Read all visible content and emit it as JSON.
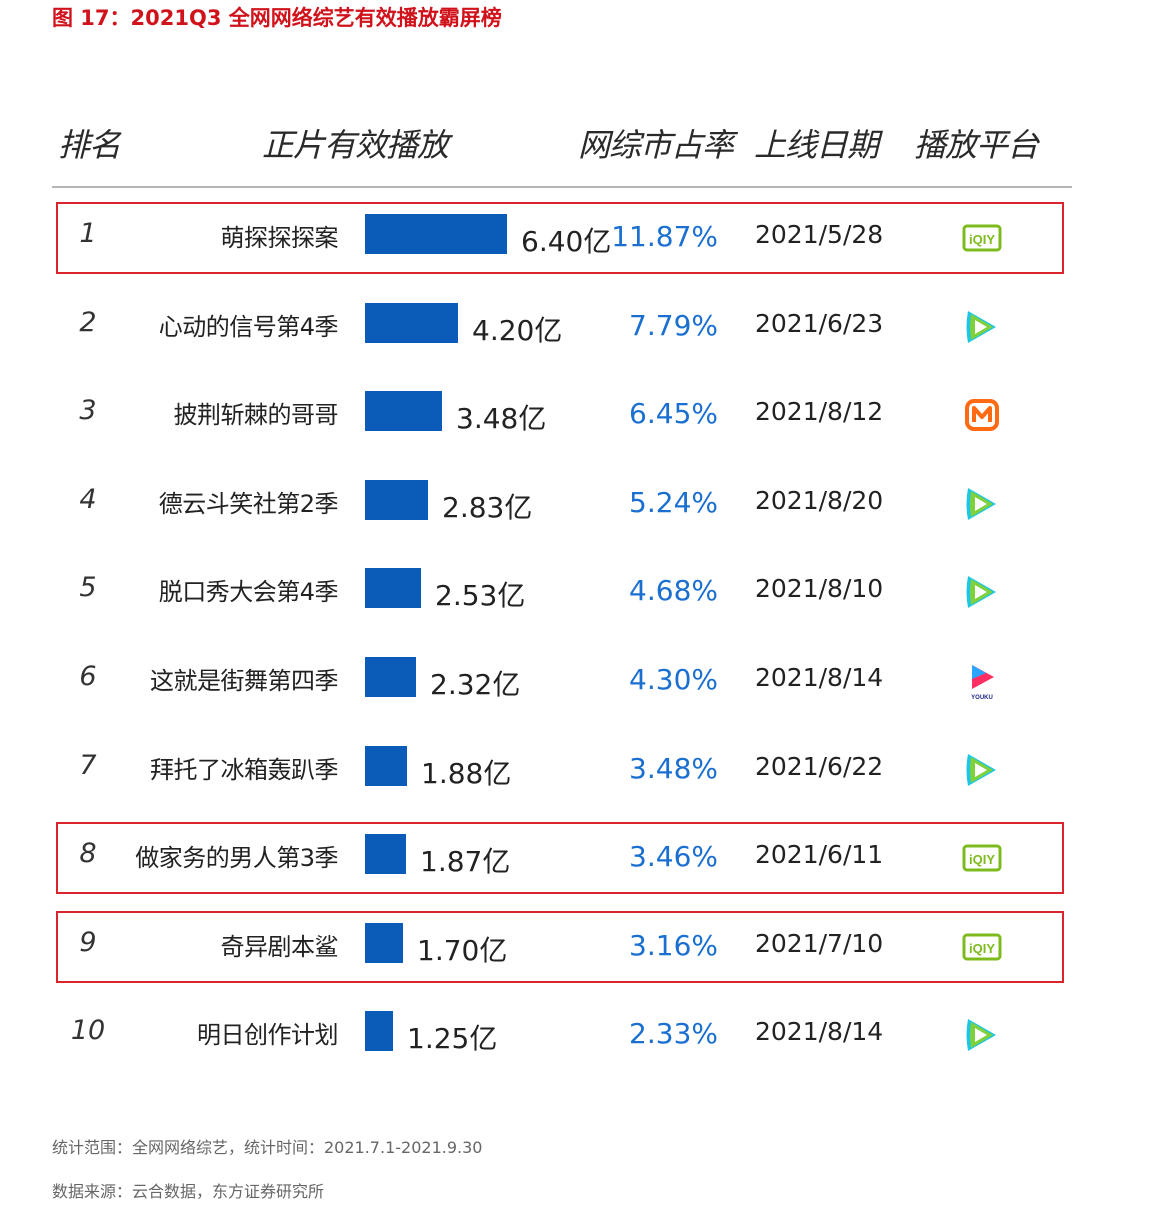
{
  "title": "图 17：2021Q3 全网网络综艺有效播放霸屏榜",
  "headers": {
    "rank": "排名",
    "plays": "正片有效播放",
    "share": "网综市占率",
    "date": "上线日期",
    "platform": "播放平台"
  },
  "chart_data": {
    "type": "bar",
    "orientation": "horizontal",
    "xlim": [
      0,
      6.4
    ],
    "categories": [
      "萌探探探案",
      "心动的信号第4季",
      "披荆斩棘的哥哥",
      "德云斗笑社第2季",
      "脱口秀大会第4季",
      "这就是街舞第四季",
      "拜托了冰箱轰趴季",
      "做家务的男人第3季",
      "奇异剧本鲨",
      "明日创作计划"
    ],
    "values": [
      6.4,
      4.2,
      3.48,
      2.83,
      2.53,
      2.32,
      1.88,
      1.87,
      1.7,
      1.25
    ],
    "rows": [
      {
        "rank": "1",
        "name": "萌探探探案",
        "value": 6.4,
        "value_label": "6.40亿",
        "share": "11.87%",
        "date": "2021/5/28",
        "platform": "iqiyi",
        "highlight": true
      },
      {
        "rank": "2",
        "name": "心动的信号第4季",
        "value": 4.2,
        "value_label": "4.20亿",
        "share": "7.79%",
        "date": "2021/6/23",
        "platform": "tencent",
        "highlight": false
      },
      {
        "rank": "3",
        "name": "披荆斩棘的哥哥",
        "value": 3.48,
        "value_label": "3.48亿",
        "share": "6.45%",
        "date": "2021/8/12",
        "platform": "mango",
        "highlight": false
      },
      {
        "rank": "4",
        "name": "德云斗笑社第2季",
        "value": 2.83,
        "value_label": "2.83亿",
        "share": "5.24%",
        "date": "2021/8/20",
        "platform": "tencent",
        "highlight": false
      },
      {
        "rank": "5",
        "name": "脱口秀大会第4季",
        "value": 2.53,
        "value_label": "2.53亿",
        "share": "4.68%",
        "date": "2021/8/10",
        "platform": "tencent",
        "highlight": false
      },
      {
        "rank": "6",
        "name": "这就是街舞第四季",
        "value": 2.32,
        "value_label": "2.32亿",
        "share": "4.30%",
        "date": "2021/8/14",
        "platform": "youku",
        "highlight": false
      },
      {
        "rank": "7",
        "name": "拜托了冰箱轰趴季",
        "value": 1.88,
        "value_label": "1.88亿",
        "share": "3.48%",
        "date": "2021/6/22",
        "platform": "tencent",
        "highlight": false
      },
      {
        "rank": "8",
        "name": "做家务的男人第3季",
        "value": 1.87,
        "value_label": "1.87亿",
        "share": "3.46%",
        "date": "2021/6/11",
        "platform": "iqiyi",
        "highlight": true
      },
      {
        "rank": "9",
        "name": "奇异剧本鲨",
        "value": 1.7,
        "value_label": "1.70亿",
        "share": "3.16%",
        "date": "2021/7/10",
        "platform": "iqiyi",
        "highlight": true
      },
      {
        "rank": "10",
        "name": "明日创作计划",
        "value": 1.25,
        "value_label": "1.25亿",
        "share": "2.33%",
        "date": "2021/8/14",
        "platform": "tencent",
        "highlight": false
      }
    ]
  },
  "colors": {
    "bar": "#0b5cb8",
    "share_text": "#1a6fd0",
    "title": "#d0121b",
    "highlight_border": "#d9252b",
    "iqiyi": "#7dbb1c",
    "mango": "#ff6a13"
  },
  "platform_labels": {
    "iqiyi": "iQIY",
    "youku": "YOUKU"
  },
  "footer": {
    "scope": "统计范围：全网网络综艺，统计时间：2021.7.1-2021.9.30",
    "source": "数据来源：云合数据，东方证券研究所"
  }
}
